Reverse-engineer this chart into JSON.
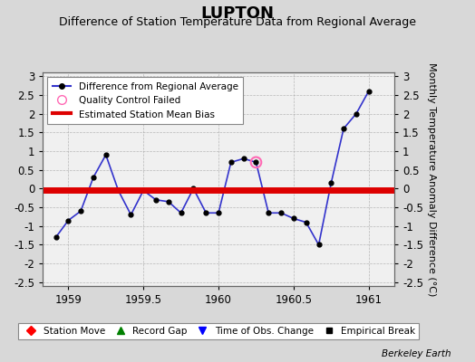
{
  "title": "LUPTON",
  "subtitle": "Difference of Station Temperature Data from Regional Average",
  "ylabel": "Monthly Temperature Anomaly Difference (°C)",
  "xlabel_ticks": [
    1959,
    1959.5,
    1960,
    1960.5,
    1961
  ],
  "xlim": [
    1958.83,
    1961.17
  ],
  "ylim": [
    -2.6,
    3.1
  ],
  "yticks": [
    -2.5,
    -2,
    -1.5,
    -1,
    -0.5,
    0,
    0.5,
    1,
    1.5,
    2,
    2.5,
    3
  ],
  "bias_value": -0.05,
  "line_color": "#3333cc",
  "bias_color": "#dd0000",
  "background_color": "#d8d8d8",
  "plot_bg_color": "#f0f0f0",
  "grid_color": "#a0a0a0",
  "data_x": [
    1958.917,
    1959.0,
    1959.083,
    1959.167,
    1959.25,
    1959.333,
    1959.417,
    1959.5,
    1959.583,
    1959.667,
    1959.75,
    1959.833,
    1959.917,
    1960.0,
    1960.083,
    1960.167,
    1960.25,
    1960.333,
    1960.417,
    1960.5,
    1960.583,
    1960.667,
    1960.75,
    1960.833,
    1960.917,
    1961.0
  ],
  "data_y": [
    -1.3,
    -0.85,
    -0.6,
    0.3,
    0.9,
    -0.05,
    -0.7,
    -0.05,
    -0.3,
    -0.35,
    -0.65,
    0.0,
    -0.65,
    -0.65,
    0.7,
    0.8,
    0.7,
    -0.65,
    -0.65,
    -0.8,
    -0.9,
    -1.5,
    0.15,
    1.6,
    2.0,
    2.6
  ],
  "qc_failed_x": [
    1960.25
  ],
  "qc_failed_y": [
    0.7
  ],
  "marker_color": "#000000",
  "marker_size": 3.5,
  "bias_linewidth": 5,
  "line_linewidth": 1.2,
  "legend1_items": [
    "Difference from Regional Average",
    "Quality Control Failed",
    "Estimated Station Mean Bias"
  ],
  "legend2_items": [
    "Station Move",
    "Record Gap",
    "Time of Obs. Change",
    "Empirical Break"
  ],
  "watermark": "Berkeley Earth",
  "title_fontsize": 13,
  "subtitle_fontsize": 9,
  "tick_fontsize": 8.5,
  "ylabel_fontsize": 8
}
